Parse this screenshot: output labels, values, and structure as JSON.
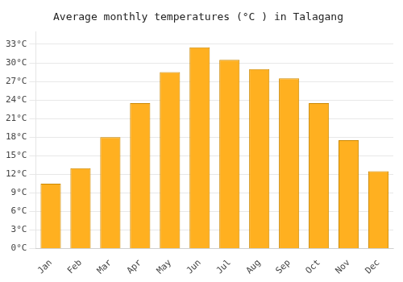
{
  "chart_data": {
    "type": "bar",
    "title": "Average monthly temperatures (°C ) in Talagang",
    "categories": [
      "Jan",
      "Feb",
      "Mar",
      "Apr",
      "May",
      "Jun",
      "Jul",
      "Aug",
      "Sep",
      "Oct",
      "Nov",
      "Dec"
    ],
    "values": [
      10.5,
      13.0,
      18.0,
      23.5,
      28.5,
      32.5,
      30.5,
      29.0,
      27.5,
      23.5,
      17.5,
      12.5
    ],
    "color": "#FFB020",
    "ylim": [
      0,
      35
    ],
    "yticks": [
      {
        "value": 0,
        "label": "0°C"
      },
      {
        "value": 3,
        "label": "3°C"
      },
      {
        "value": 6,
        "label": "6°C"
      },
      {
        "value": 9,
        "label": "9°C"
      },
      {
        "value": 12,
        "label": "12°C"
      },
      {
        "value": 15,
        "label": "15°C"
      },
      {
        "value": 18,
        "label": "18°C"
      },
      {
        "value": 21,
        "label": "21°C"
      },
      {
        "value": 24,
        "label": "24°C"
      },
      {
        "value": 27,
        "label": "27°C"
      },
      {
        "value": 30,
        "label": "30°C"
      },
      {
        "value": 33,
        "label": "33°C"
      }
    ],
    "grid": true
  }
}
